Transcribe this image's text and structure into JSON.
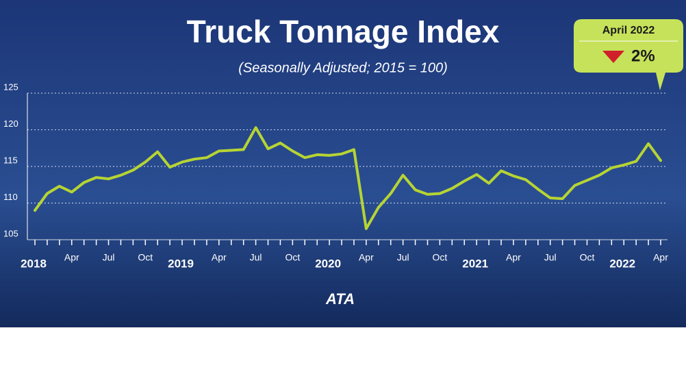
{
  "chart_data": {
    "type": "line",
    "title": "Truck Tonnage Index",
    "subtitle": "(Seasonally Adjusted; 2015 = 100)",
    "categories": [
      "2018",
      null,
      null,
      "Apr",
      null,
      null,
      "Jul",
      null,
      null,
      "Oct",
      null,
      null,
      "2019",
      null,
      null,
      "Apr",
      null,
      null,
      "Jul",
      null,
      null,
      "Oct",
      null,
      null,
      "2020",
      null,
      null,
      "Apr",
      null,
      null,
      "Jul",
      null,
      null,
      "Oct",
      null,
      null,
      "2021",
      null,
      null,
      "Apr",
      null,
      null,
      "Jul",
      null,
      null,
      "Oct",
      null,
      null,
      "2022",
      null,
      null,
      "Apr"
    ],
    "values": [
      109.0,
      111.3,
      112.3,
      111.5,
      112.8,
      113.5,
      113.3,
      113.8,
      114.5,
      115.6,
      117.0,
      114.9,
      115.6,
      116.0,
      116.2,
      117.1,
      117.2,
      117.3,
      120.3,
      117.4,
      118.2,
      117.1,
      116.2,
      116.6,
      116.5,
      116.7,
      117.3,
      106.5,
      109.4,
      111.3,
      113.8,
      111.8,
      111.2,
      111.3,
      112.0,
      113.0,
      113.9,
      112.7,
      114.4,
      113.7,
      113.2,
      111.9,
      110.7,
      110.6,
      112.4,
      113.1,
      113.8,
      114.8,
      115.2,
      115.7,
      118.1,
      115.8
    ],
    "color": "#b6d433",
    "ylim": [
      105,
      125
    ],
    "yticks": [
      105,
      110,
      115,
      120,
      125
    ],
    "grid": true,
    "callout": {
      "period": "April 2022",
      "change": "2%",
      "direction": "down"
    },
    "logo": "ATA"
  }
}
